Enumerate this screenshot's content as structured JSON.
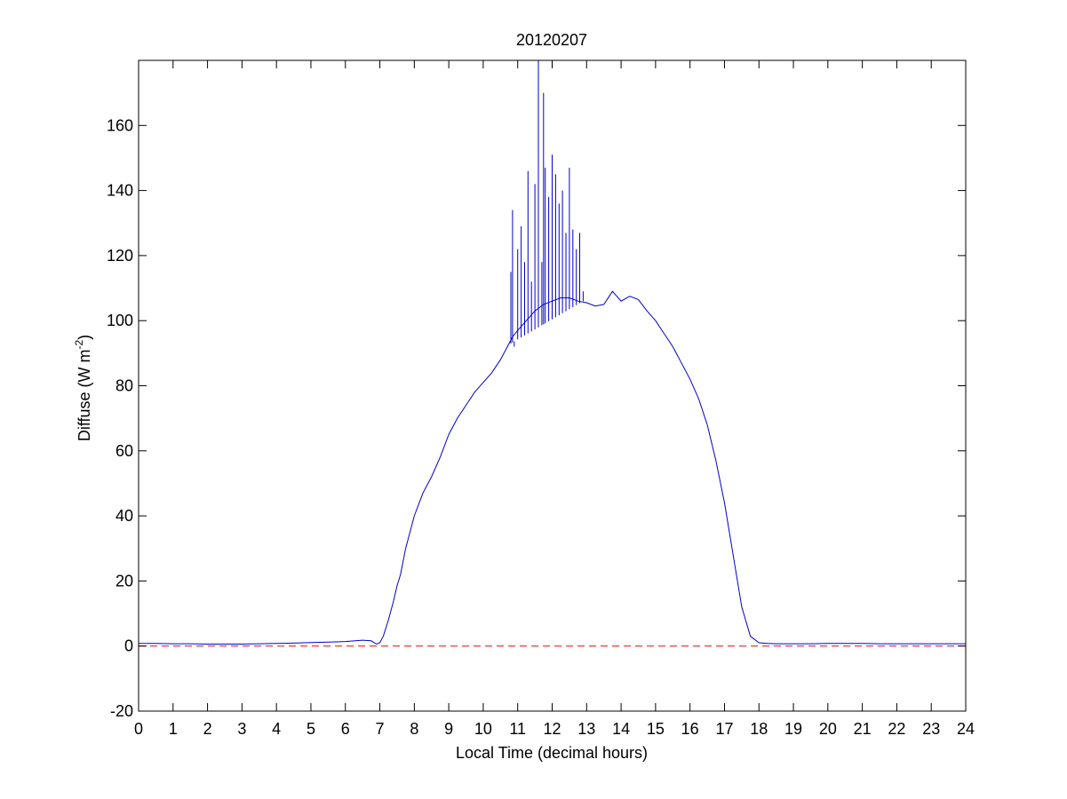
{
  "chart_data": {
    "type": "line",
    "title": "20120207",
    "xlabel": "Local Time (decimal hours)",
    "ylabel": "Diffuse (W m",
    "ylabel_sup": "-2",
    "ylabel_close": ")",
    "xlim": [
      0,
      24
    ],
    "ylim": [
      -20,
      180
    ],
    "xticks": [
      "0",
      "1",
      "2",
      "3",
      "4",
      "5",
      "6",
      "7",
      "8",
      "9",
      "10",
      "11",
      "12",
      "13",
      "14",
      "15",
      "16",
      "17",
      "18",
      "19",
      "20",
      "21",
      "22",
      "23",
      "24"
    ],
    "yticks": [
      "-20",
      "0",
      "20",
      "40",
      "60",
      "80",
      "100",
      "120",
      "140",
      "160"
    ],
    "grid": false,
    "series": [
      {
        "color": "#0000cc",
        "style": "solid",
        "x": [
          0,
          0.5,
          1,
          1.5,
          2,
          2.5,
          3,
          3.5,
          4,
          4.5,
          5,
          5.5,
          6,
          6.5,
          6.75,
          6.9,
          7.0,
          7.1,
          7.25,
          7.4,
          7.5,
          7.6,
          7.75,
          8.0,
          8.25,
          8.5,
          8.75,
          9.0,
          9.25,
          9.5,
          9.75,
          10.0,
          10.25,
          10.5,
          10.75,
          10.85,
          11.0,
          11.25,
          11.5,
          11.75,
          12.0,
          12.25,
          12.5,
          12.75,
          13.0,
          13.25,
          13.5,
          13.75,
          14.0,
          14.25,
          14.5,
          14.75,
          15.0,
          15.25,
          15.5,
          15.75,
          16.0,
          16.25,
          16.5,
          16.75,
          17.0,
          17.25,
          17.5,
          17.75,
          18.0,
          18.25,
          18.5,
          19,
          19.5,
          20,
          20.5,
          21,
          21.5,
          22,
          22.5,
          23,
          23.5,
          24
        ],
        "y": [
          0.8,
          0.8,
          0.7,
          0.7,
          0.6,
          0.6,
          0.6,
          0.7,
          0.8,
          0.9,
          1.1,
          1.2,
          1.4,
          1.8,
          1.6,
          0.6,
          1.0,
          3.0,
          8.0,
          14.0,
          18.5,
          22.0,
          30.0,
          40.0,
          47.0,
          52.0,
          58.0,
          65.0,
          70.0,
          74.0,
          78.0,
          81.0,
          84.0,
          88.0,
          93.0,
          95.0,
          97.0,
          100.0,
          103.0,
          105.0,
          106.0,
          107.0,
          107.0,
          106.0,
          105.5,
          104.5,
          105.0,
          109.0,
          106.0,
          107.5,
          106.5,
          103.0,
          100.0,
          96.0,
          92.0,
          87.0,
          82.0,
          76.0,
          68.0,
          57.0,
          44.0,
          28.0,
          12.0,
          3.0,
          1.0,
          0.8,
          0.7,
          0.7,
          0.7,
          0.8,
          0.8,
          0.8,
          0.7,
          0.7,
          0.7,
          0.7,
          0.7,
          0.7
        ]
      },
      {
        "color": "#0000cc",
        "style": "spikes",
        "x": [
          10.8,
          10.85,
          10.9,
          11.0,
          11.1,
          11.2,
          11.3,
          11.4,
          11.5,
          11.6,
          11.7,
          11.75,
          11.8,
          11.9,
          12.0,
          12.1,
          12.2,
          12.3,
          12.4,
          12.5,
          12.6,
          12.7,
          12.8,
          12.9
        ],
        "y": [
          115,
          134,
          92,
          122,
          129,
          118,
          146,
          112,
          142,
          180,
          118,
          170,
          147,
          138,
          151,
          145,
          136,
          140,
          127,
          147,
          128,
          122,
          127,
          109
        ]
      },
      {
        "color": "#ff0000",
        "style": "dashed",
        "x": [
          0,
          24
        ],
        "y": [
          0,
          0
        ]
      }
    ]
  }
}
